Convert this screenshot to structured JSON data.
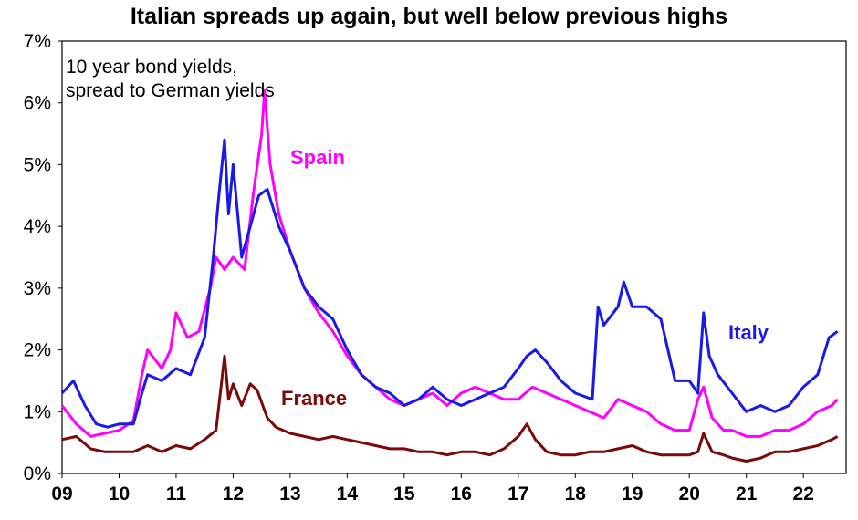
{
  "chart_data": {
    "type": "line",
    "title": "Italian spreads up again, but well below previous highs",
    "annotation": [
      "10 year bond yields,",
      "spread to German yields"
    ],
    "x_unit": "year",
    "xlim": [
      2009,
      2022.75
    ],
    "ylim": [
      0,
      7
    ],
    "y_ticks": [
      "0%",
      "1%",
      "2%",
      "3%",
      "4%",
      "5%",
      "6%",
      "7%"
    ],
    "x_ticks": [
      "09",
      "10",
      "11",
      "12",
      "13",
      "14",
      "15",
      "16",
      "17",
      "18",
      "19",
      "20",
      "21",
      "22"
    ],
    "grid": false,
    "series": [
      {
        "name": "France",
        "color": "#7a0a0a",
        "x": [
          2009.0,
          2009.25,
          2009.5,
          2009.75,
          2010.0,
          2010.25,
          2010.5,
          2010.75,
          2011.0,
          2011.25,
          2011.5,
          2011.7,
          2011.85,
          2011.92,
          2012.0,
          2012.15,
          2012.3,
          2012.42,
          2012.6,
          2012.75,
          2013.0,
          2013.25,
          2013.5,
          2013.75,
          2014.0,
          2014.25,
          2014.5,
          2014.75,
          2015.0,
          2015.25,
          2015.5,
          2015.75,
          2016.0,
          2016.25,
          2016.5,
          2016.75,
          2017.0,
          2017.15,
          2017.3,
          2017.5,
          2017.75,
          2018.0,
          2018.25,
          2018.5,
          2018.75,
          2019.0,
          2019.25,
          2019.5,
          2019.75,
          2020.0,
          2020.15,
          2020.25,
          2020.4,
          2020.6,
          2020.75,
          2021.0,
          2021.25,
          2021.5,
          2021.75,
          2022.0,
          2022.25,
          2022.5,
          2022.6
        ],
        "y": [
          0.55,
          0.6,
          0.4,
          0.35,
          0.35,
          0.35,
          0.45,
          0.35,
          0.45,
          0.4,
          0.55,
          0.7,
          1.9,
          1.2,
          1.45,
          1.1,
          1.45,
          1.35,
          0.9,
          0.75,
          0.65,
          0.6,
          0.55,
          0.6,
          0.55,
          0.5,
          0.45,
          0.4,
          0.4,
          0.35,
          0.35,
          0.3,
          0.35,
          0.35,
          0.3,
          0.4,
          0.6,
          0.8,
          0.55,
          0.35,
          0.3,
          0.3,
          0.35,
          0.35,
          0.4,
          0.45,
          0.35,
          0.3,
          0.3,
          0.3,
          0.35,
          0.65,
          0.35,
          0.3,
          0.25,
          0.2,
          0.25,
          0.35,
          0.35,
          0.4,
          0.45,
          0.55,
          0.6
        ]
      },
      {
        "name": "Spain",
        "color": "#ff00ff",
        "x": [
          2009.0,
          2009.25,
          2009.5,
          2009.75,
          2010.0,
          2010.25,
          2010.4,
          2010.5,
          2010.75,
          2010.9,
          2011.0,
          2011.2,
          2011.4,
          2011.6,
          2011.7,
          2011.85,
          2012.0,
          2012.2,
          2012.35,
          2012.5,
          2012.55,
          2012.65,
          2012.8,
          2013.0,
          2013.25,
          2013.5,
          2013.75,
          2014.0,
          2014.25,
          2014.5,
          2014.75,
          2015.0,
          2015.25,
          2015.5,
          2015.75,
          2016.0,
          2016.25,
          2016.5,
          2016.75,
          2017.0,
          2017.25,
          2017.5,
          2017.75,
          2018.0,
          2018.25,
          2018.5,
          2018.75,
          2019.0,
          2019.25,
          2019.5,
          2019.75,
          2020.0,
          2020.15,
          2020.25,
          2020.4,
          2020.6,
          2020.75,
          2021.0,
          2021.25,
          2021.5,
          2021.75,
          2022.0,
          2022.25,
          2022.5,
          2022.6
        ],
        "y": [
          1.1,
          0.8,
          0.6,
          0.65,
          0.7,
          0.85,
          1.6,
          2.0,
          1.7,
          2.0,
          2.6,
          2.2,
          2.3,
          3.0,
          3.5,
          3.3,
          3.5,
          3.3,
          4.5,
          5.5,
          6.2,
          5.0,
          4.2,
          3.6,
          3.0,
          2.6,
          2.3,
          1.9,
          1.6,
          1.4,
          1.2,
          1.1,
          1.2,
          1.3,
          1.1,
          1.3,
          1.4,
          1.3,
          1.2,
          1.2,
          1.4,
          1.3,
          1.2,
          1.1,
          1.0,
          0.9,
          1.2,
          1.1,
          1.0,
          0.8,
          0.7,
          0.7,
          1.2,
          1.4,
          0.9,
          0.7,
          0.7,
          0.6,
          0.6,
          0.7,
          0.7,
          0.8,
          1.0,
          1.1,
          1.2
        ]
      },
      {
        "name": "Italy",
        "color": "#1a1ae6",
        "x": [
          2009.0,
          2009.2,
          2009.4,
          2009.6,
          2009.8,
          2010.0,
          2010.25,
          2010.4,
          2010.5,
          2010.75,
          2011.0,
          2011.25,
          2011.5,
          2011.65,
          2011.75,
          2011.85,
          2011.92,
          2012.0,
          2012.15,
          2012.3,
          2012.45,
          2012.6,
          2012.8,
          2013.0,
          2013.25,
          2013.5,
          2013.75,
          2014.0,
          2014.25,
          2014.5,
          2014.75,
          2015.0,
          2015.25,
          2015.5,
          2015.75,
          2016.0,
          2016.25,
          2016.5,
          2016.75,
          2017.0,
          2017.15,
          2017.3,
          2017.5,
          2017.75,
          2018.0,
          2018.3,
          2018.4,
          2018.5,
          2018.75,
          2018.85,
          2019.0,
          2019.25,
          2019.5,
          2019.75,
          2020.0,
          2020.15,
          2020.25,
          2020.35,
          2020.5,
          2020.75,
          2021.0,
          2021.25,
          2021.5,
          2021.75,
          2022.0,
          2022.25,
          2022.45,
          2022.6
        ],
        "y": [
          1.3,
          1.5,
          1.1,
          0.8,
          0.75,
          0.8,
          0.8,
          1.3,
          1.6,
          1.5,
          1.7,
          1.6,
          2.2,
          3.5,
          4.5,
          5.4,
          4.2,
          5.0,
          3.5,
          4.0,
          4.5,
          4.6,
          4.0,
          3.6,
          3.0,
          2.7,
          2.5,
          2.0,
          1.6,
          1.4,
          1.3,
          1.1,
          1.2,
          1.4,
          1.2,
          1.1,
          1.2,
          1.3,
          1.4,
          1.7,
          1.9,
          2.0,
          1.8,
          1.5,
          1.3,
          1.2,
          2.7,
          2.4,
          2.7,
          3.1,
          2.7,
          2.7,
          2.5,
          1.5,
          1.5,
          1.3,
          2.6,
          1.9,
          1.6,
          1.3,
          1.0,
          1.1,
          1.0,
          1.1,
          1.4,
          1.6,
          2.2,
          2.3
        ]
      }
    ],
    "labels": {
      "spain": "Spain",
      "italy": "Italy",
      "france": "France"
    }
  }
}
